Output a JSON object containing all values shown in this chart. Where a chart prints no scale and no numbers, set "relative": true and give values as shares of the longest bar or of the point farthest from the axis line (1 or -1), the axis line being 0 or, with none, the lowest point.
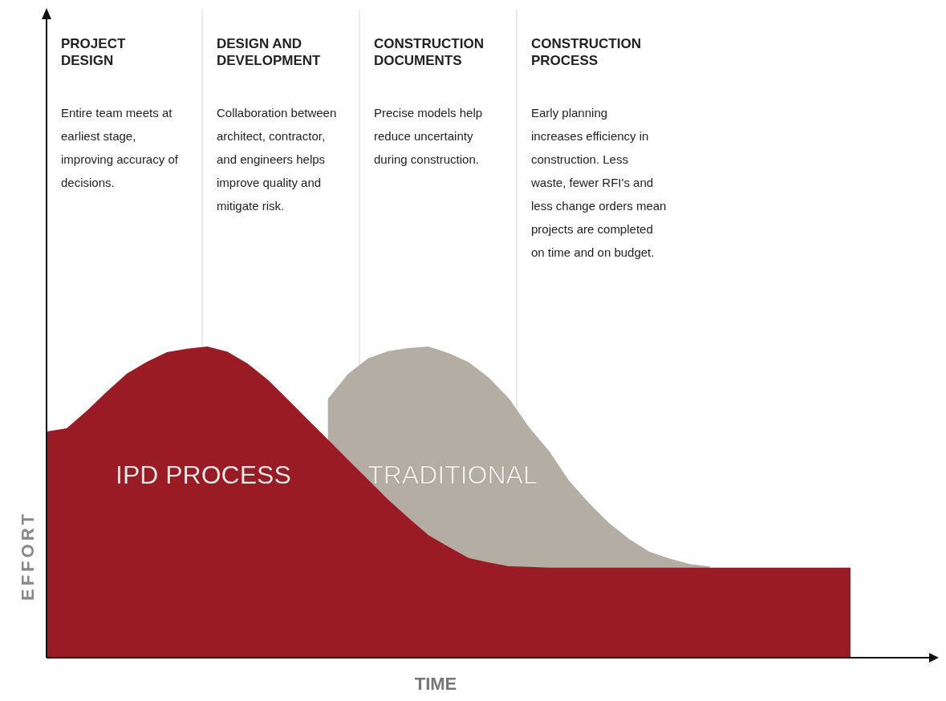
{
  "chart_data": {
    "type": "area",
    "relative": true,
    "xlabel": "TIME",
    "ylabel": "EFFORT",
    "categories": [
      null,
      null,
      null,
      null,
      null,
      null,
      null,
      null,
      null,
      null,
      null,
      null,
      null,
      null,
      null,
      null,
      null,
      null,
      null,
      null,
      null,
      null,
      null,
      null,
      null,
      null,
      null,
      null,
      null,
      null,
      null,
      null,
      null,
      null,
      null,
      null,
      null,
      null,
      null,
      null,
      null
    ],
    "series": [
      {
        "name": "TRADITIONAL",
        "color": "#b3ada3",
        "values": [
          null,
          null,
          null,
          null,
          null,
          null,
          null,
          null,
          null,
          null,
          null,
          null,
          null,
          null,
          0.832,
          0.912,
          0.962,
          0.985,
          0.995,
          1,
          0.979,
          0.95,
          0.9,
          0.834,
          0.741,
          0.664,
          0.568,
          0.496,
          0.432,
          0.381,
          0.34,
          0.318,
          0.301,
          0.293,
          null,
          null,
          null,
          null,
          null,
          null,
          null
        ]
      },
      {
        "name": "IPD PROCESS",
        "color": "#9b1b24",
        "values": [
          0.727,
          0.737,
          0.793,
          0.855,
          0.913,
          0.951,
          0.982,
          0.993,
          1,
          0.983,
          0.945,
          0.894,
          0.83,
          0.765,
          0.701,
          0.636,
          0.572,
          0.508,
          0.45,
          0.394,
          0.356,
          0.32,
          0.306,
          0.294,
          0.292,
          0.289,
          0.289,
          0.289,
          0.289,
          0.289,
          0.289,
          0.289,
          0.289,
          0.289,
          0.289,
          0.289,
          0.289,
          0.289,
          0.289,
          0.289,
          0.289
        ]
      }
    ],
    "annotations": [
      "PROJECT DESIGN",
      "Entire team meets at earliest stage, improving accuracy of decisions.",
      "DESIGN AND DEVELOPMENT",
      "Collaboration between architect, contractor, and engineers helps improve quality and mitigate risk.",
      "CONSTRUCTION DOCUMENTS",
      "Precise models help reduce uncertainty during construction.",
      "CONSTRUCTION PROCESS",
      "Early planning increases efficiency in construction. Less waste, fewer RFI's and less change orders mean projects are completed on time and on budget."
    ]
  }
}
